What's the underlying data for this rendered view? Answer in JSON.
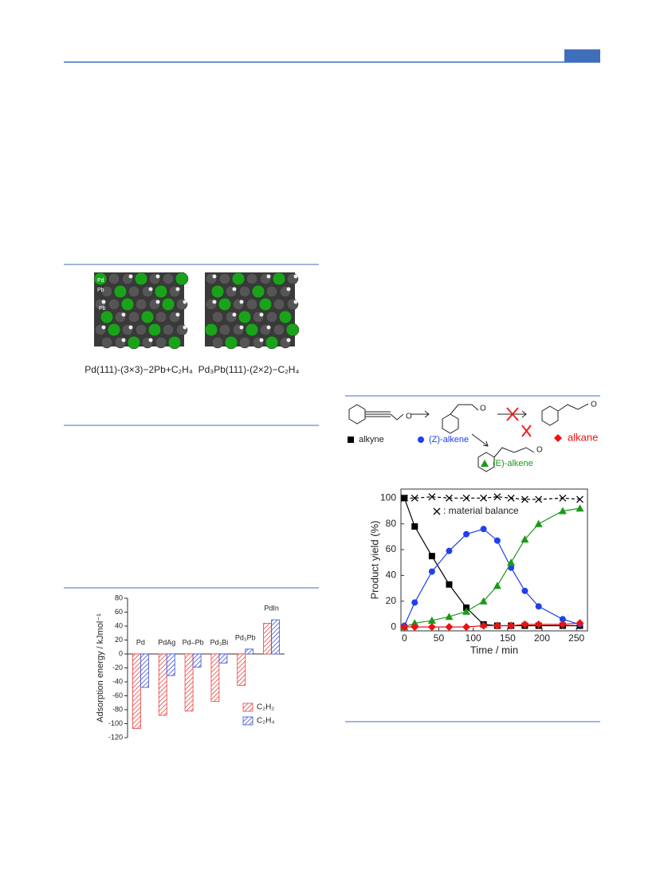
{
  "figure": {
    "captions": [
      "Pd(111)-(3×3)−2Pb+C₂H₄",
      "Pd₃Pb(111)-(2×2)−C₂H₄"
    ],
    "atom_labels": [
      "Pd",
      "Pb",
      "Pb"
    ]
  },
  "chart_data": [
    {
      "type": "bar",
      "ylabel": "Adsorption energy / kJmol⁻¹",
      "categories": [
        "Pd",
        "PdAg",
        "Pd–Pb",
        "Pd₃Bi",
        "Pd₃Pb",
        "PdIn"
      ],
      "series": [
        {
          "name": "C₂H₂",
          "color": "#e8433e",
          "values": [
            -107,
            -88,
            -82,
            -68,
            -45,
            44
          ]
        },
        {
          "name": "C₂H₄",
          "color": "#3d4fd8",
          "values": [
            -48,
            -31,
            -19,
            -13,
            7,
            49
          ]
        }
      ],
      "ylim": [
        -120,
        80
      ],
      "yticks": [
        -120,
        -100,
        -80,
        -60,
        -40,
        -20,
        0,
        20,
        40,
        60,
        80
      ]
    },
    {
      "type": "line",
      "xlabel": "Time / min",
      "ylabel": "Product yield (%)",
      "x": [
        0,
        15,
        40,
        65,
        90,
        115,
        135,
        155,
        175,
        195,
        230,
        255
      ],
      "series": [
        {
          "name": "alkyne",
          "color": "#000000",
          "marker": "square",
          "values": [
            100,
            78,
            55,
            33,
            15,
            2,
            1,
            1,
            1,
            1,
            1,
            1
          ]
        },
        {
          "name": "(Z)-alkene",
          "color": "#1f3ff0",
          "marker": "circle",
          "values": [
            1,
            19,
            43,
            59,
            72,
            76,
            67,
            46,
            28,
            16,
            6,
            2
          ]
        },
        {
          "name": "(E)-alkene",
          "color": "#1a9a1a",
          "marker": "triangle",
          "values": [
            0,
            3,
            5,
            8,
            12,
            20,
            32,
            50,
            68,
            80,
            90,
            92
          ]
        },
        {
          "name": "alkane",
          "color": "#ee1111",
          "marker": "diamond",
          "values": [
            0,
            0,
            0,
            0,
            0,
            1,
            1,
            1,
            2,
            2,
            2,
            3
          ]
        },
        {
          "name": ": material balance",
          "color": "#000000",
          "marker": "cross",
          "dashed": true,
          "values": [
            100,
            100,
            101,
            100,
            100,
            100,
            101,
            100,
            99,
            99,
            100,
            99
          ]
        }
      ],
      "xlim": [
        -5,
        266
      ],
      "ylim": [
        -3,
        107
      ],
      "xticks": [
        0,
        50,
        100,
        150,
        200,
        250
      ],
      "yticks": [
        0,
        20,
        40,
        60,
        80,
        100
      ]
    }
  ]
}
